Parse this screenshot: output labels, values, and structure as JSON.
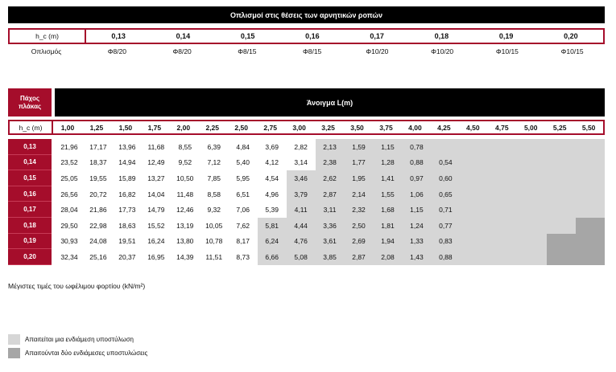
{
  "top_table": {
    "title": "Οπλισμοί στις θέσεις των αρνητικών ροπών",
    "h_label": "h_c (m)",
    "h_values": [
      "0,13",
      "0,14",
      "0,15",
      "0,16",
      "0,17",
      "0,18",
      "0,19",
      "0,20"
    ],
    "reinf_label": "Οπλισμός",
    "reinf_values": [
      "Φ8/20",
      "Φ8/20",
      "Φ8/15",
      "Φ8/15",
      "Φ10/20",
      "Φ10/20",
      "Φ10/15",
      "Φ10/15"
    ]
  },
  "main_table": {
    "corner_label": "Πάχος πλάκας",
    "span_title": "Άνοιγμα L(m)",
    "h_label": "h_c (m)",
    "spans": [
      "1,00",
      "1,25",
      "1,50",
      "1,75",
      "2,00",
      "2,25",
      "2,50",
      "2,75",
      "3,00",
      "3,25",
      "3,50",
      "3,75",
      "4,00",
      "4,25",
      "4,50",
      "4,75",
      "5,00",
      "5,25",
      "5,50"
    ],
    "rows": [
      {
        "h": "0,13",
        "values": [
          "21,96",
          "17,17",
          "13,96",
          "11,68",
          "8,55",
          "6,39",
          "4,84",
          "3,69",
          "2,82",
          "2,13",
          "1,59",
          "1,15",
          "0,78",
          "",
          "",
          "",
          "",
          "",
          ""
        ],
        "shade": [
          0,
          0,
          0,
          0,
          0,
          0,
          0,
          0,
          0,
          1,
          1,
          1,
          1,
          1,
          1,
          1,
          1,
          1,
          1
        ]
      },
      {
        "h": "0,14",
        "values": [
          "23,52",
          "18,37",
          "14,94",
          "12,49",
          "9,52",
          "7,12",
          "5,40",
          "4,12",
          "3,14",
          "2,38",
          "1,77",
          "1,28",
          "0,88",
          "0,54",
          "",
          "",
          "",
          "",
          ""
        ],
        "shade": [
          0,
          0,
          0,
          0,
          0,
          0,
          0,
          0,
          0,
          1,
          1,
          1,
          1,
          1,
          1,
          1,
          1,
          1,
          1
        ]
      },
      {
        "h": "0,15",
        "values": [
          "25,05",
          "19,55",
          "15,89",
          "13,27",
          "10,50",
          "7,85",
          "5,95",
          "4,54",
          "3,46",
          "2,62",
          "1,95",
          "1,41",
          "0,97",
          "0,60",
          "",
          "",
          "",
          "",
          ""
        ],
        "shade": [
          0,
          0,
          0,
          0,
          0,
          0,
          0,
          0,
          1,
          1,
          1,
          1,
          1,
          1,
          1,
          1,
          1,
          1,
          1
        ]
      },
      {
        "h": "0,16",
        "values": [
          "26,56",
          "20,72",
          "16,82",
          "14,04",
          "11,48",
          "8,58",
          "6,51",
          "4,96",
          "3,79",
          "2,87",
          "2,14",
          "1,55",
          "1,06",
          "0,65",
          "",
          "",
          "",
          "",
          ""
        ],
        "shade": [
          0,
          0,
          0,
          0,
          0,
          0,
          0,
          0,
          1,
          1,
          1,
          1,
          1,
          1,
          1,
          1,
          1,
          1,
          1
        ]
      },
      {
        "h": "0,17",
        "values": [
          "28,04",
          "21,86",
          "17,73",
          "14,79",
          "12,46",
          "9,32",
          "7,06",
          "5,39",
          "4,11",
          "3,11",
          "2,32",
          "1,68",
          "1,15",
          "0,71",
          "",
          "",
          "",
          "",
          ""
        ],
        "shade": [
          0,
          0,
          0,
          0,
          0,
          0,
          0,
          0,
          1,
          1,
          1,
          1,
          1,
          1,
          1,
          1,
          1,
          1,
          1
        ]
      },
      {
        "h": "0,18",
        "values": [
          "29,50",
          "22,98",
          "18,63",
          "15,52",
          "13,19",
          "10,05",
          "7,62",
          "5,81",
          "4,44",
          "3,36",
          "2,50",
          "1,81",
          "1,24",
          "0,77",
          "",
          "",
          "",
          "",
          ""
        ],
        "shade": [
          0,
          0,
          0,
          0,
          0,
          0,
          0,
          1,
          1,
          1,
          1,
          1,
          1,
          1,
          1,
          1,
          1,
          1,
          2
        ]
      },
      {
        "h": "0,19",
        "values": [
          "30,93",
          "24,08",
          "19,51",
          "16,24",
          "13,80",
          "10,78",
          "8,17",
          "6,24",
          "4,76",
          "3,61",
          "2,69",
          "1,94",
          "1,33",
          "0,83",
          "",
          "",
          "",
          "",
          ""
        ],
        "shade": [
          0,
          0,
          0,
          0,
          0,
          0,
          0,
          1,
          1,
          1,
          1,
          1,
          1,
          1,
          1,
          1,
          1,
          2,
          2
        ]
      },
      {
        "h": "0,20",
        "values": [
          "32,34",
          "25,16",
          "20,37",
          "16,95",
          "14,39",
          "11,51",
          "8,73",
          "6,66",
          "5,08",
          "3,85",
          "2,87",
          "2,08",
          "1,43",
          "0,88",
          "",
          "",
          "",
          "",
          ""
        ],
        "shade": [
          0,
          0,
          0,
          0,
          0,
          0,
          0,
          1,
          1,
          1,
          1,
          1,
          1,
          1,
          1,
          1,
          1,
          2,
          2
        ]
      }
    ]
  },
  "footnote": "Μέγιστες τιμές του ωφέλιμου φορτίου (kN/m²)",
  "legend": [
    {
      "label": "Απαιτείται μια ενδιάμεση υποστύλωση",
      "color": "#d6d6d6"
    },
    {
      "label": "Απαιτούνται δύο ενδιάμεσες υποστυλώσεις",
      "color": "#a6a6a6"
    }
  ],
  "colors": {
    "accent": "#a50d2b",
    "header": "#000000"
  }
}
